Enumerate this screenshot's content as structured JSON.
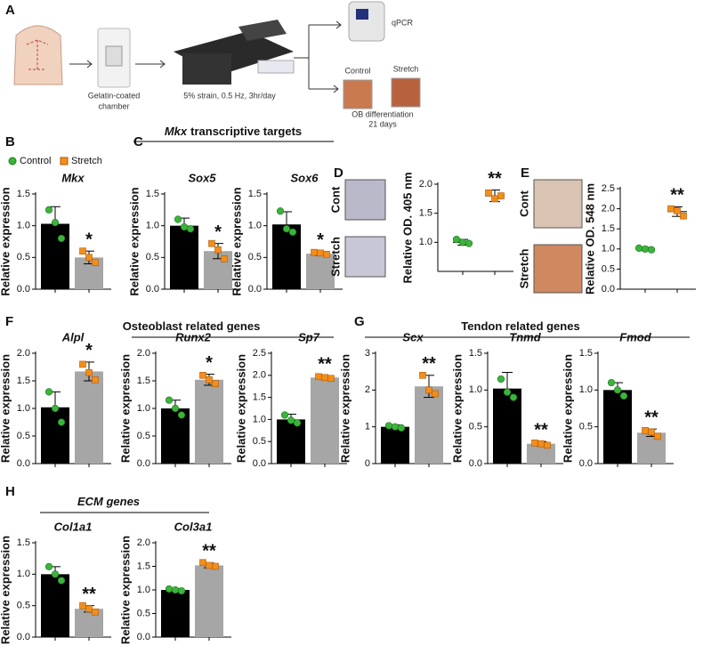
{
  "schematic": {
    "panel": "A",
    "chamber": [
      "Gelatin-coated",
      "chamber"
    ],
    "device": "5% strain, 0.5 Hz, 3hr/day",
    "readout": "qPCR",
    "dishes": [
      "Control",
      "Stretch"
    ],
    "differentiation": [
      "OB differentiation",
      "21 days"
    ]
  },
  "legend": [
    {
      "name": "Control",
      "color": "#000000",
      "point_color": "#3cb43c",
      "marker": "circle"
    },
    {
      "name": "Stretch",
      "color": "#a6a6a6",
      "point_color": "#f28e1c",
      "marker": "square"
    }
  ],
  "groups": [
    {
      "panel": "C",
      "label_italic": "Mkx",
      "label": "transcriptive targets"
    },
    {
      "panel": "F",
      "label": "Osteoblast related genes"
    },
    {
      "panel": "G",
      "label": "Tendon related genes"
    },
    {
      "panel": "H",
      "label": "ECM genes",
      "italic": true
    }
  ],
  "chart_data": [
    {
      "type": "bar",
      "panel": "B",
      "title": "Mkx",
      "ylabel": "Relative expression",
      "ylim": [
        0,
        1.5
      ],
      "yticks": [
        {
          "value": 0,
          "label": "0.0"
        },
        {
          "value": 0.5,
          "label": "0.5"
        },
        {
          "value": 1,
          "label": "1.0"
        },
        {
          "value": 1.5,
          "label": "1.5"
        }
      ],
      "values": [
        1.03,
        0.5
      ],
      "errors": [
        0.27,
        0.1
      ],
      "points": [
        [
          1.25,
          1.05,
          0.8
        ],
        [
          0.6,
          0.5,
          0.42
        ]
      ],
      "significance": "*"
    },
    {
      "type": "bar",
      "title": "Sox5",
      "ylabel": "Relative expression",
      "ylim": [
        0,
        1.5
      ],
      "yticks": [
        {
          "value": 0,
          "label": "0.0"
        },
        {
          "value": 0.5,
          "label": "0.5"
        },
        {
          "value": 1,
          "label": "1.0"
        },
        {
          "value": 1.5,
          "label": "1.5"
        }
      ],
      "values": [
        1.0,
        0.6
      ],
      "errors": [
        0.12,
        0.12
      ],
      "points": [
        [
          1.1,
          0.98,
          0.95
        ],
        [
          0.72,
          0.62,
          0.48
        ]
      ],
      "significance": "*"
    },
    {
      "type": "bar",
      "title": "Sox6",
      "ylabel": "Relative expression",
      "ylim": [
        0,
        1.5
      ],
      "yticks": [
        {
          "value": 0,
          "label": "0.0"
        },
        {
          "value": 0.5,
          "label": "0.5"
        },
        {
          "value": 1,
          "label": "1.0"
        },
        {
          "value": 1.5,
          "label": "1.5"
        }
      ],
      "values": [
        1.02,
        0.56
      ],
      "errors": [
        0.2,
        0.03
      ],
      "points": [
        [
          1.23,
          0.95,
          0.9
        ],
        [
          0.58,
          0.57,
          0.55
        ]
      ],
      "significance": "*"
    },
    {
      "type": "dot",
      "panel": "D",
      "image_labels": [
        "Cont",
        "Stretch"
      ],
      "ylabel": "Relative OD. 405 nm",
      "ylim": [
        0.5,
        2.0
      ],
      "yticks": [
        {
          "value": 1,
          "label": "1.0"
        },
        {
          "value": 1.5,
          "label": "1.5"
        },
        {
          "value": 2,
          "label": "2.0"
        }
      ],
      "values": [
        1.0,
        1.8
      ],
      "errors": [
        0.05,
        0.1
      ],
      "points": [
        [
          1.05,
          1.0,
          0.98
        ],
        [
          1.85,
          1.75,
          1.8
        ]
      ],
      "significance": "**"
    },
    {
      "type": "dot",
      "panel": "E",
      "image_labels": [
        "Cont",
        "Stretch"
      ],
      "ylabel": "Relative OD. 548 nm",
      "ylim": [
        0,
        2.5
      ],
      "yticks": [
        {
          "value": 0,
          "label": "0.0"
        },
        {
          "value": 0.5,
          "label": "0.5"
        },
        {
          "value": 1,
          "label": "1.0"
        },
        {
          "value": 1.5,
          "label": "1.5"
        },
        {
          "value": 2,
          "label": "2.0"
        },
        {
          "value": 2.5,
          "label": "2.5"
        }
      ],
      "values": [
        1.0,
        1.93
      ],
      "errors": [
        0.04,
        0.12
      ],
      "points": [
        [
          1.02,
          1.0,
          0.98
        ],
        [
          2.0,
          1.95,
          1.82
        ]
      ],
      "significance": "**"
    },
    {
      "type": "bar",
      "title": "Alpl",
      "ylabel": "Relative expression",
      "ylim": [
        0,
        2.0
      ],
      "yticks": [
        {
          "value": 0,
          "label": "0.0"
        },
        {
          "value": 0.5,
          "label": "0.5"
        },
        {
          "value": 1,
          "label": "1.0"
        },
        {
          "value": 1.5,
          "label": "1.5"
        },
        {
          "value": 2,
          "label": "2.0"
        }
      ],
      "values": [
        1.02,
        1.67
      ],
      "errors": [
        0.28,
        0.17
      ],
      "points": [
        [
          1.3,
          1.0,
          0.75
        ],
        [
          1.8,
          1.65,
          1.52
        ]
      ],
      "significance": "*"
    },
    {
      "type": "bar",
      "title": "Runx2",
      "ylabel": "Relative expression",
      "ylim": [
        0,
        2.0
      ],
      "yticks": [
        {
          "value": 0,
          "label": "0.0"
        },
        {
          "value": 0.5,
          "label": "0.5"
        },
        {
          "value": 1,
          "label": "1.0"
        },
        {
          "value": 1.5,
          "label": "1.5"
        },
        {
          "value": 2,
          "label": "2.0"
        }
      ],
      "values": [
        1.0,
        1.52
      ],
      "errors": [
        0.15,
        0.1
      ],
      "points": [
        [
          1.15,
          1.0,
          0.88
        ],
        [
          1.6,
          1.52,
          1.45
        ]
      ],
      "significance": "*"
    },
    {
      "type": "bar",
      "title": "Sp7",
      "ylabel": "Relative expression",
      "ylim": [
        0,
        2.5
      ],
      "yticks": [
        {
          "value": 0,
          "label": "0.0"
        },
        {
          "value": 0.5,
          "label": "0.5"
        },
        {
          "value": 1,
          "label": "1.0"
        },
        {
          "value": 1.5,
          "label": "1.5"
        },
        {
          "value": 2,
          "label": "2.0"
        },
        {
          "value": 2.5,
          "label": "2.5"
        }
      ],
      "values": [
        1.0,
        1.95
      ],
      "errors": [
        0.12,
        0.04
      ],
      "points": [
        [
          1.1,
          0.98,
          0.92
        ],
        [
          1.97,
          1.95,
          1.93
        ]
      ],
      "significance": "**"
    },
    {
      "type": "bar",
      "title": "Scx",
      "ylabel": "Relative expression",
      "ylim": [
        0,
        3
      ],
      "yticks": [
        0,
        1,
        2,
        3
      ],
      "values": [
        1.0,
        2.1
      ],
      "errors": [
        0.05,
        0.3
      ],
      "points": [
        [
          1.03,
          1.0,
          0.97
        ],
        [
          2.4,
          2.0,
          1.9
        ]
      ],
      "significance": "**"
    },
    {
      "type": "bar",
      "title": "Tnmd",
      "ylabel": "Relative expression",
      "ylim": [
        0,
        1.5
      ],
      "yticks": [
        {
          "value": 0,
          "label": "0.0"
        },
        {
          "value": 0.5,
          "label": "0.5"
        },
        {
          "value": 1,
          "label": "1.0"
        },
        {
          "value": 1.5,
          "label": "1.5"
        }
      ],
      "values": [
        1.02,
        0.27
      ],
      "errors": [
        0.22,
        0.03
      ],
      "points": [
        [
          1.15,
          0.97,
          0.9
        ],
        [
          0.28,
          0.27,
          0.25
        ]
      ],
      "significance": "**"
    },
    {
      "type": "bar",
      "title": "Fmod",
      "ylabel": "Relative expression",
      "ylim": [
        0,
        1.5
      ],
      "yticks": [
        {
          "value": 0,
          "label": "0.0"
        },
        {
          "value": 0.5,
          "label": "0.5"
        },
        {
          "value": 1,
          "label": "1.0"
        },
        {
          "value": 1.5,
          "label": "1.5"
        }
      ],
      "values": [
        1.0,
        0.42
      ],
      "errors": [
        0.1,
        0.05
      ],
      "points": [
        [
          1.1,
          1.0,
          0.92
        ],
        [
          0.45,
          0.43,
          0.37
        ]
      ],
      "significance": "**"
    },
    {
      "type": "bar",
      "title": "Col1a1",
      "ylabel": "Relative expression",
      "ylim": [
        0,
        1.5
      ],
      "yticks": [
        {
          "value": 0,
          "label": "0.0"
        },
        {
          "value": 0.5,
          "label": "0.5"
        },
        {
          "value": 1,
          "label": "1.0"
        },
        {
          "value": 1.5,
          "label": "1.5"
        }
      ],
      "values": [
        1.0,
        0.45
      ],
      "errors": [
        0.12,
        0.05
      ],
      "points": [
        [
          1.12,
          1.0,
          0.9
        ],
        [
          0.5,
          0.45,
          0.4
        ]
      ],
      "significance": "**"
    },
    {
      "type": "bar",
      "title": "Col3a1",
      "ylabel": "Relative expression",
      "ylim": [
        0,
        2.0
      ],
      "yticks": [
        {
          "value": 0,
          "label": "0.0"
        },
        {
          "value": 0.5,
          "label": "0.5"
        },
        {
          "value": 1,
          "label": "1.0"
        },
        {
          "value": 1.5,
          "label": "1.5"
        },
        {
          "value": 2,
          "label": "2.0"
        }
      ],
      "values": [
        1.0,
        1.52
      ],
      "errors": [
        0.03,
        0.05
      ],
      "points": [
        [
          1.02,
          1.0,
          0.98
        ],
        [
          1.58,
          1.52,
          1.5
        ]
      ],
      "significance": "**"
    }
  ]
}
